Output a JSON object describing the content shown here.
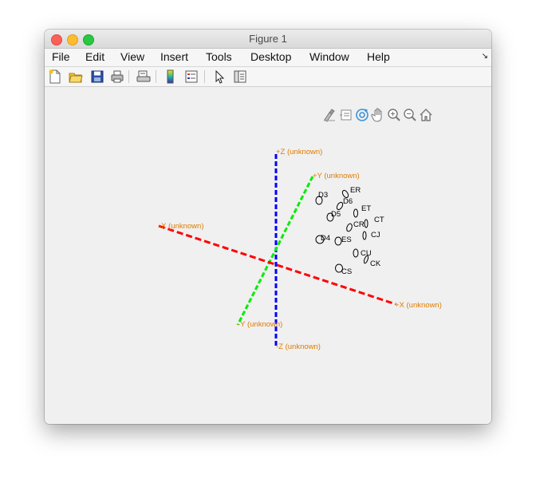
{
  "window": {
    "title": "Figure 1"
  },
  "menu": {
    "items": [
      "File",
      "Edit",
      "View",
      "Insert",
      "Tools",
      "Desktop",
      "Window",
      "Help"
    ],
    "overflow_icon": "dock-arrow-icon"
  },
  "toolbar": {
    "buttons": [
      "new-figure",
      "open-file",
      "save",
      "print",
      "print-preview",
      "insert-colorbar",
      "insert-legend",
      "edit-plot",
      "show-plot-tools"
    ]
  },
  "axes_toolbar": {
    "buttons": [
      "brush",
      "data-tips",
      "rotate-3d",
      "pan",
      "zoom-in",
      "zoom-out",
      "restore-view"
    ]
  },
  "axis_labels": {
    "plus_z": "+Z (unknown)",
    "plus_y": "+Y (unknown)",
    "minus_x": "-X (unknown)",
    "plus_x": "+X (unknown)",
    "minus_y": "-Y (unknown)",
    "minus_z": "-Z (unknown)"
  },
  "markers": {
    "labels": [
      "ER",
      "D3",
      "D6",
      "ET",
      "D5",
      "CT",
      "CR",
      "CJ",
      "D4",
      "ES",
      "CU",
      "CK",
      "CS"
    ]
  },
  "colors": {
    "x_axis": "#ff0000",
    "y_axis": "#00ee00",
    "z_axis": "#0000ff",
    "axis_label": "#e07b00",
    "marker": "#000000"
  }
}
